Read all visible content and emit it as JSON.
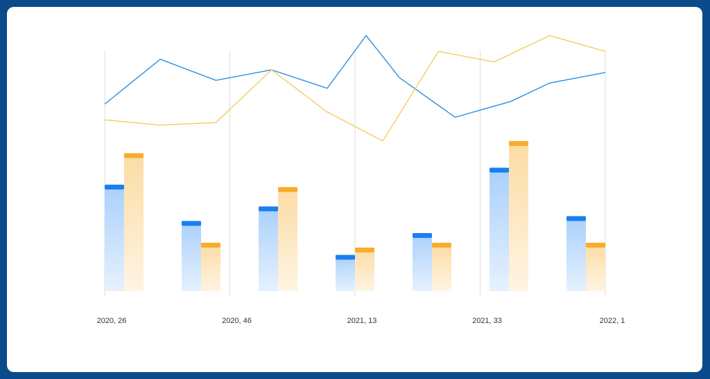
{
  "chart_data": [
    {
      "type": "bar",
      "categories": [
        null,
        null,
        null,
        null,
        null,
        null,
        null
      ],
      "series": [
        {
          "color": "#1a7ff0",
          "values": [
            44,
            29,
            35,
            15,
            24,
            51,
            31
          ]
        },
        {
          "color": "#f9ac2a",
          "values": [
            57,
            20,
            43,
            18,
            20,
            62,
            20
          ]
        }
      ],
      "ylim": [
        0,
        100
      ]
    },
    {
      "type": "line",
      "series": [
        {
          "color": "#2a8ee0",
          "x": [
            0,
            1,
            2,
            3,
            4,
            4.7,
            5.3,
            6.3,
            7.3,
            8,
            9
          ],
          "values": [
            71,
            88,
            80,
            84,
            77,
            97,
            81,
            66,
            72,
            79,
            83
          ]
        },
        {
          "color": "#f5cd5a",
          "x": [
            0,
            1,
            2,
            3,
            4,
            5,
            6,
            7,
            8,
            9
          ],
          "values": [
            65,
            63,
            64,
            84,
            68,
            57,
            91,
            87,
            97,
            91
          ]
        }
      ],
      "xlim": [
        0,
        9
      ],
      "xticks": [
        {
          "value": 0,
          "label": "2020, 26"
        },
        {
          "value": 2.25,
          "label": "2020, 46"
        },
        {
          "value": 4.5,
          "label": "2021, 13"
        },
        {
          "value": 6.75,
          "label": "2021, 33"
        },
        {
          "value": 9,
          "label": "2022, 1"
        }
      ],
      "ylim": [
        0,
        100
      ],
      "grid": true
    }
  ]
}
